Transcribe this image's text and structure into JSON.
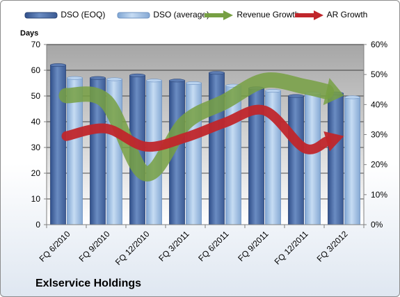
{
  "chart_data": {
    "type": "bar",
    "title": "Exlservice Holdings",
    "ylabel": "Days",
    "categories": [
      "FQ 6/2010",
      "FQ 9/2010",
      "FQ 12/2010",
      "FQ 3/2011",
      "FQ 6/2011",
      "FQ 9/2011",
      "FQ 12/2011",
      "FQ 3/2012"
    ],
    "ylim": [
      0,
      70
    ],
    "y_ticks": [
      0,
      10,
      20,
      30,
      40,
      50,
      60,
      70
    ],
    "y2lim": [
      0,
      60
    ],
    "y2_ticks": [
      "0%",
      "10%",
      "20%",
      "30%",
      "40%",
      "50%",
      "60%"
    ],
    "grid": true,
    "legend_position": "top",
    "series": [
      {
        "name": "DSO (EOQ)",
        "type": "bar",
        "axis": "left",
        "color": "#4f6fa4",
        "values": [
          62,
          57,
          58,
          56,
          59,
          53,
          50,
          51
        ]
      },
      {
        "name": "DSO (average)",
        "type": "bar",
        "axis": "left",
        "color": "#a7c4e6",
        "values": [
          57,
          56.5,
          56,
          55,
          54,
          52,
          51,
          49.5
        ]
      },
      {
        "name": "Revenue Growth",
        "type": "line",
        "axis": "right",
        "color": "#77a043",
        "values": [
          43,
          41,
          17,
          34,
          41,
          48,
          46,
          43
        ]
      },
      {
        "name": "AR Growth",
        "type": "line",
        "axis": "right",
        "color": "#c0262b",
        "values": [
          29.5,
          32,
          26,
          29,
          34,
          38,
          25.5,
          29.5
        ]
      }
    ]
  }
}
